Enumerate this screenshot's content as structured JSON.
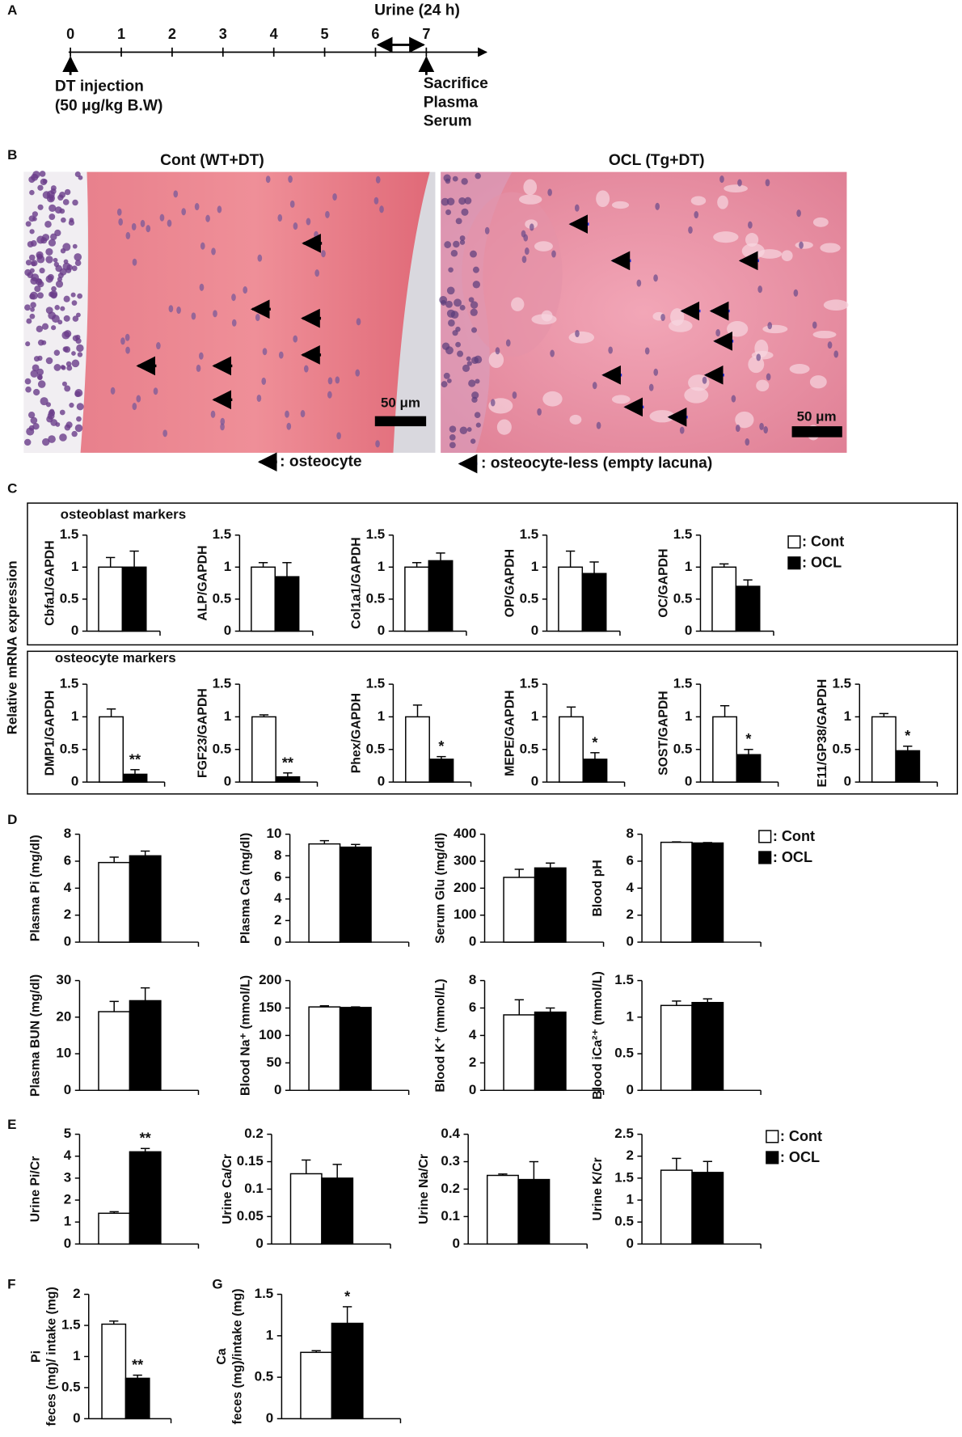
{
  "panel_labels": [
    "A",
    "B",
    "C",
    "D",
    "E",
    "F",
    "G"
  ],
  "timeline": {
    "days": [
      0,
      1,
      2,
      3,
      4,
      5,
      6,
      7
    ],
    "urine": "Urine (24 h)",
    "injection": [
      "DT injection",
      "(50 μg/kg B.W)"
    ],
    "sacrifice": [
      "Sacrifice",
      "Plasma",
      "Serum"
    ]
  },
  "histology": {
    "panels": [
      {
        "title": "Cont (WT+DT)",
        "scale_bar": "50 μm"
      },
      {
        "title": "OCL (Tg+DT)",
        "scale_bar": "50 μm"
      }
    ],
    "legend": [
      ": osteocyte",
      ": osteocyte-less (empty  lacuna)"
    ]
  },
  "mrna": {
    "ylabel": "Relative mRNA expression",
    "groups": [
      "osteoblast markers",
      "osteocyte markers"
    ]
  },
  "chart_data": [
    {
      "type": "bar",
      "ylabel": "Cbfa1/GAPDH",
      "ylim": [
        0,
        1.5
      ],
      "yticks": [
        0,
        0.5,
        1,
        1.5
      ],
      "series": [
        {
          "color": "#ffffff",
          "values": [
            1.0
          ],
          "errors": [
            0.15
          ]
        },
        {
          "color": "#000000",
          "values": [
            1.0
          ],
          "errors": [
            0.25
          ]
        }
      ]
    },
    {
      "type": "bar",
      "ylabel": "ALP/GAPDH",
      "ylim": [
        0,
        1.5
      ],
      "yticks": [
        0,
        0.5,
        1,
        1.5
      ],
      "series": [
        {
          "color": "#ffffff",
          "values": [
            1.0
          ],
          "errors": [
            0.07
          ]
        },
        {
          "color": "#000000",
          "values": [
            0.85
          ],
          "errors": [
            0.22
          ]
        }
      ]
    },
    {
      "type": "bar",
      "ylabel": "Col1a1/GAPDH",
      "ylim": [
        0,
        1.5
      ],
      "yticks": [
        0,
        0.5,
        1,
        1.5
      ],
      "series": [
        {
          "color": "#ffffff",
          "values": [
            1.0
          ],
          "errors": [
            0.07
          ]
        },
        {
          "color": "#000000",
          "values": [
            1.1
          ],
          "errors": [
            0.12
          ]
        }
      ]
    },
    {
      "type": "bar",
      "ylabel": "OP/GAPDH",
      "ylim": [
        0,
        1.5
      ],
      "yticks": [
        0,
        0.5,
        1,
        1.5
      ],
      "series": [
        {
          "color": "#ffffff",
          "values": [
            1.0
          ],
          "errors": [
            0.25
          ]
        },
        {
          "color": "#000000",
          "values": [
            0.9
          ],
          "errors": [
            0.18
          ]
        }
      ]
    },
    {
      "type": "bar",
      "ylabel": "OC/GAPDH",
      "ylim": [
        0,
        1.5
      ],
      "yticks": [
        0,
        0.5,
        1,
        1.5
      ],
      "series": [
        {
          "name": ": Cont",
          "color": "#ffffff",
          "values": [
            1.0
          ],
          "errors": [
            0.05
          ]
        },
        {
          "name": ": OCL",
          "color": "#000000",
          "values": [
            0.7
          ],
          "errors": [
            0.1
          ]
        }
      ]
    },
    {
      "type": "bar",
      "ylabel": "DMP1/GAPDH",
      "ylim": [
        0,
        1.5
      ],
      "yticks": [
        0,
        0.5,
        1,
        1.5
      ],
      "series": [
        {
          "color": "#ffffff",
          "values": [
            1.0
          ],
          "errors": [
            0.12
          ]
        },
        {
          "color": "#000000",
          "values": [
            0.12
          ],
          "errors": [
            0.07
          ],
          "annotation": "**"
        }
      ]
    },
    {
      "type": "bar",
      "ylabel": "FGF23/GAPDH",
      "ylim": [
        0,
        1.5
      ],
      "yticks": [
        0,
        0.5,
        1,
        1.5
      ],
      "series": [
        {
          "color": "#ffffff",
          "values": [
            1.0
          ],
          "errors": [
            0.03
          ]
        },
        {
          "color": "#000000",
          "values": [
            0.08
          ],
          "errors": [
            0.06
          ],
          "annotation": "**"
        }
      ]
    },
    {
      "type": "bar",
      "ylabel": "Phex/GAPDH",
      "ylim": [
        0,
        1.5
      ],
      "yticks": [
        0,
        0.5,
        1,
        1.5
      ],
      "series": [
        {
          "color": "#ffffff",
          "values": [
            1.0
          ],
          "errors": [
            0.18
          ]
        },
        {
          "color": "#000000",
          "values": [
            0.35
          ],
          "errors": [
            0.04
          ],
          "annotation": "*"
        }
      ]
    },
    {
      "type": "bar",
      "ylabel": "MEPE/GAPDH",
      "ylim": [
        0,
        1.5
      ],
      "yticks": [
        0,
        0.5,
        1,
        1.5
      ],
      "series": [
        {
          "color": "#ffffff",
          "values": [
            1.0
          ],
          "errors": [
            0.15
          ]
        },
        {
          "color": "#000000",
          "values": [
            0.35
          ],
          "errors": [
            0.1
          ],
          "annotation": "*"
        }
      ]
    },
    {
      "type": "bar",
      "ylabel": "SOST/GAPDH",
      "ylim": [
        0,
        1.5
      ],
      "yticks": [
        0,
        0.5,
        1,
        1.5
      ],
      "series": [
        {
          "color": "#ffffff",
          "values": [
            1.0
          ],
          "errors": [
            0.17
          ]
        },
        {
          "color": "#000000",
          "values": [
            0.42
          ],
          "errors": [
            0.08
          ],
          "annotation": "*"
        }
      ]
    },
    {
      "type": "bar",
      "ylabel": "E11/GP38/GAPDH",
      "ylim": [
        0,
        1.5
      ],
      "yticks": [
        0,
        0.5,
        1,
        1.5
      ],
      "series": [
        {
          "color": "#ffffff",
          "values": [
            1.0
          ],
          "errors": [
            0.05
          ]
        },
        {
          "color": "#000000",
          "values": [
            0.48
          ],
          "errors": [
            0.07
          ],
          "annotation": "*"
        }
      ]
    },
    {
      "type": "bar",
      "ylabel": "Plasma  Pi (mg/dl)",
      "ylim": [
        0,
        8
      ],
      "yticks": [
        0,
        2,
        4,
        6,
        8
      ],
      "series": [
        {
          "color": "#ffffff",
          "values": [
            5.9
          ],
          "errors": [
            0.4
          ]
        },
        {
          "color": "#000000",
          "values": [
            6.4
          ],
          "errors": [
            0.35
          ]
        }
      ]
    },
    {
      "type": "bar",
      "ylabel": "Plasma  Ca (mg/dl)",
      "ylim": [
        0,
        10
      ],
      "yticks": [
        0,
        2,
        4,
        6,
        8,
        10
      ],
      "series": [
        {
          "color": "#ffffff",
          "values": [
            9.1
          ],
          "errors": [
            0.3
          ]
        },
        {
          "color": "#000000",
          "values": [
            8.8
          ],
          "errors": [
            0.25
          ]
        }
      ]
    },
    {
      "type": "bar",
      "ylabel": "Serum Glu (mg/dl)",
      "ylim": [
        0,
        400
      ],
      "yticks": [
        0,
        100,
        200,
        300,
        400
      ],
      "series": [
        {
          "color": "#ffffff",
          "values": [
            240
          ],
          "errors": [
            30
          ]
        },
        {
          "color": "#000000",
          "values": [
            275
          ],
          "errors": [
            18
          ]
        }
      ]
    },
    {
      "type": "bar",
      "ylabel": "Blood pH",
      "ylim": [
        0,
        8
      ],
      "yticks": [
        0,
        2,
        4,
        6,
        8
      ],
      "series": [
        {
          "name": ": Cont",
          "color": "#ffffff",
          "values": [
            7.4
          ],
          "errors": [
            0.03
          ]
        },
        {
          "name": ": OCL",
          "color": "#000000",
          "values": [
            7.35
          ],
          "errors": [
            0.03
          ]
        }
      ]
    },
    {
      "type": "bar",
      "ylabel": "Plasma BUN (mg/dl)",
      "ylim": [
        0,
        30
      ],
      "yticks": [
        0,
        10,
        20,
        30
      ],
      "series": [
        {
          "color": "#ffffff",
          "values": [
            21.5
          ],
          "errors": [
            2.8
          ]
        },
        {
          "color": "#000000",
          "values": [
            24.5
          ],
          "errors": [
            3.5
          ]
        }
      ]
    },
    {
      "type": "bar",
      "ylabel": "Blood Na⁺ (mmol/L)",
      "ylim": [
        0,
        200
      ],
      "yticks": [
        0,
        50,
        100,
        150,
        200
      ],
      "series": [
        {
          "color": "#ffffff",
          "values": [
            152
          ],
          "errors": [
            2
          ]
        },
        {
          "color": "#000000",
          "values": [
            151
          ],
          "errors": [
            1
          ]
        }
      ]
    },
    {
      "type": "bar",
      "ylabel": "Blood K⁺ (mmol/L)",
      "ylim": [
        0,
        8
      ],
      "yticks": [
        0,
        2,
        4,
        6,
        8
      ],
      "series": [
        {
          "color": "#ffffff",
          "values": [
            5.5
          ],
          "errors": [
            1.1
          ]
        },
        {
          "color": "#000000",
          "values": [
            5.7
          ],
          "errors": [
            0.3
          ]
        }
      ]
    },
    {
      "type": "bar",
      "ylabel": "Blood iCa²⁺ (mmol/L)",
      "ylim": [
        0,
        1.5
      ],
      "yticks": [
        0,
        0.5,
        1,
        1.5
      ],
      "series": [
        {
          "color": "#ffffff",
          "values": [
            1.16
          ],
          "errors": [
            0.06
          ]
        },
        {
          "color": "#000000",
          "values": [
            1.2
          ],
          "errors": [
            0.05
          ]
        }
      ]
    },
    {
      "type": "bar",
      "ylabel": "Urine Pi/Cr",
      "ylim": [
        0,
        5
      ],
      "yticks": [
        0,
        1,
        2,
        3,
        4,
        5
      ],
      "series": [
        {
          "color": "#ffffff",
          "values": [
            1.4
          ],
          "errors": [
            0.07
          ]
        },
        {
          "color": "#000000",
          "values": [
            4.2
          ],
          "errors": [
            0.15
          ],
          "annotation": "**"
        }
      ]
    },
    {
      "type": "bar",
      "ylabel": "Urine Ca/Cr",
      "ylim": [
        0,
        0.2
      ],
      "yticks": [
        0,
        0.05,
        0.1,
        0.15,
        0.2
      ],
      "series": [
        {
          "color": "#ffffff",
          "values": [
            0.128
          ],
          "errors": [
            0.025
          ]
        },
        {
          "color": "#000000",
          "values": [
            0.12
          ],
          "errors": [
            0.025
          ]
        }
      ]
    },
    {
      "type": "bar",
      "ylabel": "Urine Na/Cr",
      "ylim": [
        0,
        0.4
      ],
      "yticks": [
        0,
        0.1,
        0.2,
        0.3,
        0.4
      ],
      "series": [
        {
          "color": "#ffffff",
          "values": [
            0.25
          ],
          "errors": [
            0.005
          ]
        },
        {
          "color": "#000000",
          "values": [
            0.235
          ],
          "errors": [
            0.065
          ]
        }
      ]
    },
    {
      "type": "bar",
      "ylabel": "Urine K/Cr",
      "ylim": [
        0,
        2.5
      ],
      "yticks": [
        0,
        0.5,
        1,
        1.5,
        2,
        2.5
      ],
      "series": [
        {
          "name": ": Cont",
          "color": "#ffffff",
          "values": [
            1.68
          ],
          "errors": [
            0.27
          ]
        },
        {
          "name": ": OCL",
          "color": "#000000",
          "values": [
            1.63
          ],
          "errors": [
            0.25
          ]
        }
      ]
    },
    {
      "type": "bar",
      "ylabel": [
        "Pi",
        "feces (mg)/ intake (mg)"
      ],
      "ylim": [
        0,
        2
      ],
      "yticks": [
        0,
        0.5,
        1,
        1.5,
        2
      ],
      "series": [
        {
          "color": "#ffffff",
          "values": [
            1.52
          ],
          "errors": [
            0.05
          ]
        },
        {
          "color": "#000000",
          "values": [
            0.65
          ],
          "errors": [
            0.05
          ],
          "annotation": "**"
        }
      ]
    },
    {
      "type": "bar",
      "ylabel": [
        "Ca",
        "feces (mg)/intake (mg)"
      ],
      "ylim": [
        0,
        1.5
      ],
      "yticks": [
        0,
        0.5,
        1,
        1.5
      ],
      "series": [
        {
          "color": "#ffffff",
          "values": [
            0.8
          ],
          "errors": [
            0.02
          ]
        },
        {
          "color": "#000000",
          "values": [
            1.15
          ],
          "errors": [
            0.2
          ],
          "annotation": "*"
        }
      ]
    }
  ]
}
